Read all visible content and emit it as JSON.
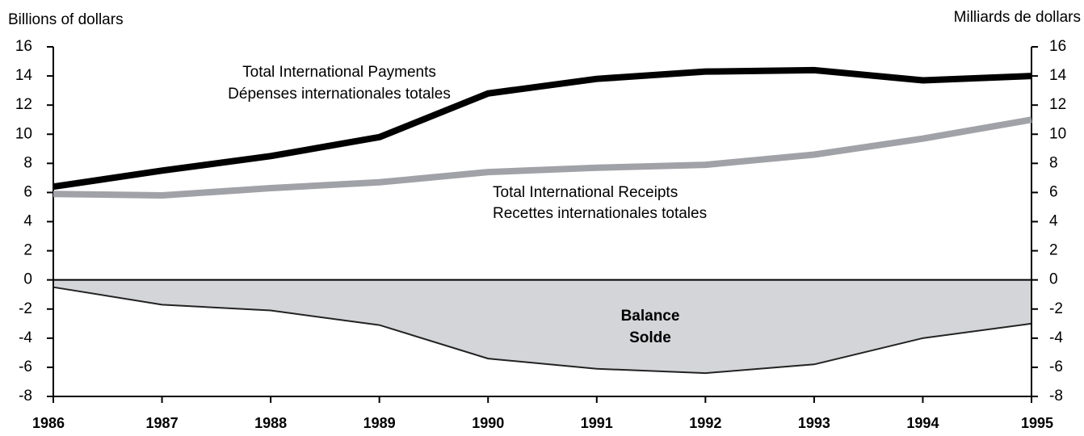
{
  "chart_data": {
    "type": "line",
    "y_label": "Billions of dollars",
    "y2_label": "Milliards de dollars",
    "categories": [
      "1986",
      "1987",
      "1988",
      "1989",
      "1990",
      "1991",
      "1992",
      "1993",
      "1994",
      "1995"
    ],
    "series": [
      {
        "name": "Total International Payments",
        "name_fr": "Dépenses internationales totales",
        "style": "line",
        "color": "#000000",
        "values": [
          6.4,
          7.5,
          8.5,
          9.8,
          12.8,
          13.8,
          14.3,
          14.4,
          13.7,
          14.0
        ]
      },
      {
        "name": "Total International Receipts",
        "name_fr": "Recettes internationales totales",
        "style": "line",
        "color": "#a0a2a8",
        "values": [
          5.9,
          5.8,
          6.3,
          6.7,
          7.4,
          7.7,
          7.9,
          8.6,
          9.7,
          11.0
        ]
      },
      {
        "name": "Balance",
        "name_fr": "Solde",
        "style": "area",
        "color": "#d3d5d8",
        "values": [
          -0.5,
          -1.7,
          -2.1,
          -3.1,
          -5.4,
          -6.1,
          -6.4,
          -5.8,
          -4.0,
          -3.0
        ]
      }
    ],
    "ylim": [
      -8,
      16
    ],
    "yticks": [
      -8,
      -6,
      -4,
      -2,
      0,
      2,
      4,
      6,
      8,
      10,
      12,
      14,
      16
    ],
    "y2lim": [
      -8,
      16
    ],
    "y2ticks": [
      -8,
      -6,
      -4,
      -2,
      0,
      2,
      4,
      6,
      8,
      10,
      12,
      14,
      16
    ]
  }
}
